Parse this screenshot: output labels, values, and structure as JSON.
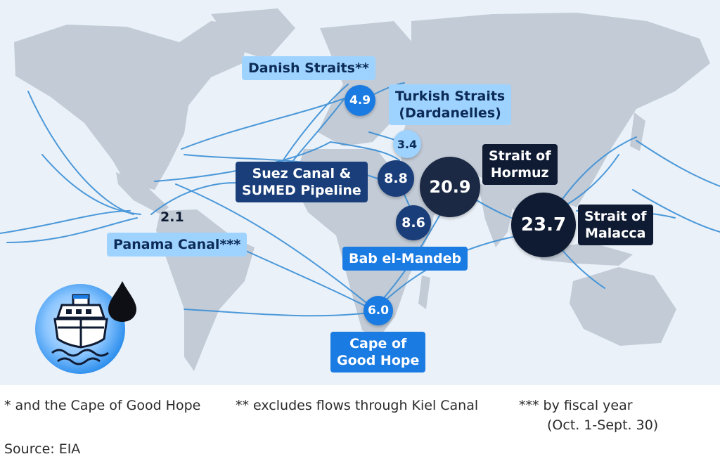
{
  "map": {
    "labels": {
      "danish": "Danish Straits**",
      "turkish_1": "Turkish Straits",
      "turkish_2": "(Dardanelles)",
      "suez_1": "Suez Canal &",
      "suez_2": "SUMED Pipeline",
      "hormuz_1": "Strait of",
      "hormuz_2": "Hormuz",
      "malacca_1": "Strait of",
      "malacca_2": "Malacca",
      "panama": "Panama Canal***",
      "bab": "Bab el-Mandeb",
      "cape_1": "Cape of",
      "cape_2": "Good Hope"
    },
    "values": {
      "danish": "4.9",
      "turkish": "3.4",
      "suez": "8.8",
      "hormuz": "20.9",
      "malacca": "23.7",
      "panama": "2.1",
      "bab": "8.6",
      "cape": "6.0"
    },
    "icons": {
      "ship": "oil-tanker-icon",
      "drop": "oil-drop-icon"
    },
    "colors": {
      "ocean": "#eaf1f8",
      "land": "#c2cbd6",
      "route": "#3a8fd6",
      "light_chip": "#9fd3ff",
      "mid_chip": "#1a7be3",
      "navy_chip": "#1a3e7a",
      "dark_chip": "#0f1b33"
    }
  },
  "footnotes": {
    "star1": "* and the Cape of Good Hope",
    "star2": "** excludes flows through Kiel Canal",
    "star3_1": "*** by fiscal year",
    "star3_2": "(Oct. 1-Sept. 30)",
    "source": "Source: EIA"
  }
}
